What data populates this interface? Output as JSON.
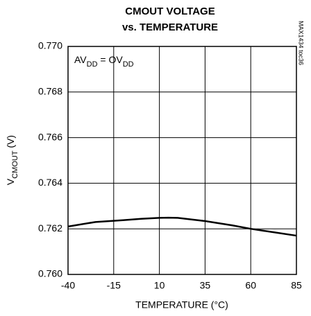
{
  "chart_data": {
    "type": "line",
    "title": [
      "CMOUT VOLTAGE",
      "vs. TEMPERATURE"
    ],
    "x_label": "TEMPERATURE (°C)",
    "y_label": [
      "V",
      "CMOUT",
      " (V)"
    ],
    "annotation": [
      "AV",
      "DD",
      " = OV",
      "DD"
    ],
    "side_note": "MAX1434 toc36",
    "x": [
      -40,
      -25,
      -10,
      0,
      10,
      15,
      20,
      35,
      50,
      60,
      70,
      85
    ],
    "series": [
      {
        "name": "VCMOUT",
        "color": "#000000",
        "values": [
          0.7621,
          0.7623,
          0.76238,
          0.76244,
          0.76248,
          0.76249,
          0.76248,
          0.76234,
          0.76215,
          0.762,
          0.76188,
          0.7617
        ]
      }
    ],
    "xlim": [
      -40,
      85
    ],
    "xticks": [
      -40,
      -15,
      10,
      35,
      60,
      85
    ],
    "ylim": [
      0.76,
      0.77
    ],
    "yticks": [
      {
        "value": 0.76,
        "label": "0.760"
      },
      0.762,
      0.764,
      0.766,
      0.768,
      {
        "value": 0.77,
        "label": "0.770"
      }
    ],
    "grid": true
  }
}
